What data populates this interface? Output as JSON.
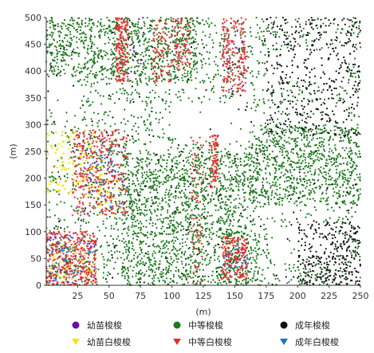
{
  "chart_data": {
    "type": "scatter",
    "xlabel": "(m)",
    "ylabel": "(m)",
    "xlim": [
      0,
      250
    ],
    "ylim": [
      0,
      500
    ],
    "x_ticks": [
      25,
      50,
      75,
      100,
      125,
      150,
      175,
      200,
      225,
      250
    ],
    "y_ticks": [
      0,
      50,
      100,
      150,
      200,
      250,
      300,
      350,
      400,
      450,
      500
    ],
    "grid": false,
    "legend_position": "bottom",
    "series": [
      {
        "name": "幼苗梭梭",
        "color": "#6a0dad",
        "marker": "circle",
        "point_count": 120,
        "clusters": [
          {
            "x": [
              0,
              40
            ],
            "y": [
              0,
              100
            ],
            "weight": 3
          },
          {
            "x": [
              20,
              65
            ],
            "y": [
              170,
              290
            ],
            "weight": 2
          },
          {
            "x": [
              65,
              80
            ],
            "y": [
              380,
              500
            ],
            "weight": 1
          },
          {
            "x": [
              140,
              160
            ],
            "y": [
              360,
              480
            ],
            "weight": 1
          }
        ]
      },
      {
        "name": "中等梭梭",
        "color": "#1e7a1e",
        "marker": "circle",
        "point_count": 9000,
        "clusters": [
          {
            "x": [
              0,
              250
            ],
            "y": [
              0,
              500
            ],
            "weight": 10
          },
          {
            "x": [
              160,
              250
            ],
            "y": [
              150,
              300
            ],
            "weight": 3
          },
          {
            "x": [
              60,
              160
            ],
            "y": [
              100,
              250
            ],
            "weight": 3
          },
          {
            "x": [
              0,
              120
            ],
            "y": [
              380,
              500
            ],
            "weight": 3
          },
          {
            "x": [
              60,
              170
            ],
            "y": [
              0,
              100
            ],
            "weight": 2
          }
        ],
        "gaps": [
          {
            "x": [
              100,
              165
            ],
            "y": [
              270,
              340
            ]
          },
          {
            "x": [
              175,
              240
            ],
            "y": [
              380,
              440
            ]
          },
          {
            "x": [
              180,
              240
            ],
            "y": [
              40,
              110
            ]
          },
          {
            "x": [
              0,
              25
            ],
            "y": [
              330,
              390
            ]
          },
          {
            "x": [
              200,
              240
            ],
            "y": [
              300,
              340
            ]
          }
        ]
      },
      {
        "name": "成年梭梭",
        "color": "#111111",
        "marker": "circle",
        "point_count": 900,
        "clusters": [
          {
            "x": [
              175,
              250
            ],
            "y": [
              280,
              500
            ],
            "weight": 4
          },
          {
            "x": [
              200,
              250
            ],
            "y": [
              0,
              120
            ],
            "weight": 3
          },
          {
            "x": [
              0,
              250
            ],
            "y": [
              0,
              500
            ],
            "weight": 2
          }
        ]
      },
      {
        "name": "幼苗白梭梭",
        "color": "#f2e600",
        "marker": "triangle-down",
        "point_count": 260,
        "clusters": [
          {
            "x": [
              0,
              45
            ],
            "y": [
              170,
              290
            ],
            "weight": 3
          },
          {
            "x": [
              0,
              40
            ],
            "y": [
              0,
              80
            ],
            "weight": 2
          },
          {
            "x": [
              30,
              60
            ],
            "y": [
              130,
              200
            ],
            "weight": 1
          }
        ]
      },
      {
        "name": "中等白梭梭",
        "color": "#e03030",
        "marker": "triangle-down",
        "point_count": 1500,
        "clusters": [
          {
            "x": [
              0,
              40
            ],
            "y": [
              0,
              100
            ],
            "weight": 4
          },
          {
            "x": [
              20,
              65
            ],
            "y": [
              130,
              290
            ],
            "weight": 4
          },
          {
            "x": [
              55,
              65
            ],
            "y": [
              380,
              500
            ],
            "weight": 2
          },
          {
            "x": [
              100,
              115
            ],
            "y": [
              400,
              500
            ],
            "weight": 1
          },
          {
            "x": [
              140,
              160
            ],
            "y": [
              360,
              500
            ],
            "weight": 2
          },
          {
            "x": [
              115,
              125
            ],
            "y": [
              0,
              280
            ],
            "weight": 1
          },
          {
            "x": [
              130,
              137
            ],
            "y": [
              180,
              280
            ],
            "weight": 1
          },
          {
            "x": [
              140,
              160
            ],
            "y": [
              10,
              90
            ],
            "weight": 2
          },
          {
            "x": [
              85,
              100
            ],
            "y": [
              380,
              500
            ],
            "weight": 1
          }
        ]
      },
      {
        "name": "成年白梭梭",
        "color": "#1f6fc4",
        "marker": "triangle-down",
        "point_count": 150,
        "clusters": [
          {
            "x": [
              0,
              40
            ],
            "y": [
              0,
              90
            ],
            "weight": 2
          },
          {
            "x": [
              30,
              65
            ],
            "y": [
              130,
              260
            ],
            "weight": 2
          },
          {
            "x": [
              140,
              160
            ],
            "y": [
              20,
              80
            ],
            "weight": 1
          }
        ]
      }
    ]
  }
}
